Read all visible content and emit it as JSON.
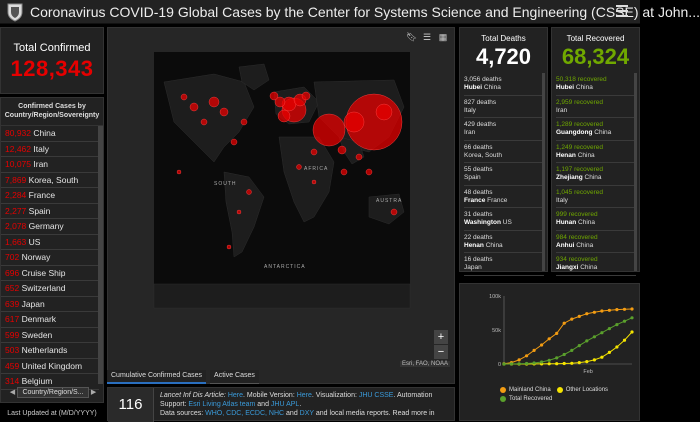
{
  "header": {
    "title": "Coronavirus COVID-19 Global Cases by the Center for Systems Science and Engineering (CSSE) at John..."
  },
  "total_confirmed": {
    "label": "Total Confirmed",
    "value": "128,343"
  },
  "country_panel": {
    "heading": "Confirmed Cases by Country/Region/Sovereignty",
    "rows": [
      {
        "num": "80,932",
        "name": "China"
      },
      {
        "num": "12,462",
        "name": "Italy"
      },
      {
        "num": "10,075",
        "name": "Iran"
      },
      {
        "num": "7,869",
        "name": "Korea, South"
      },
      {
        "num": "2,284",
        "name": "France"
      },
      {
        "num": "2,277",
        "name": "Spain"
      },
      {
        "num": "2,078",
        "name": "Germany"
      },
      {
        "num": "1,663",
        "name": "US"
      },
      {
        "num": "702",
        "name": "Norway"
      },
      {
        "num": "696",
        "name": "Cruise Ship"
      },
      {
        "num": "652",
        "name": "Switzerland"
      },
      {
        "num": "639",
        "name": "Japan"
      },
      {
        "num": "617",
        "name": "Denmark"
      },
      {
        "num": "599",
        "name": "Sweden"
      },
      {
        "num": "503",
        "name": "Netherlands"
      },
      {
        "num": "459",
        "name": "United Kingdom"
      },
      {
        "num": "314",
        "name": "Belgium"
      }
    ],
    "footer_tab": "Country/Region/S...",
    "prev_arrow": "◀",
    "next_arrow": "▶"
  },
  "last_updated": "Last Updated at (M/D/YYYY)",
  "map": {
    "labels": {
      "africa": "AFRICA",
      "south": "SOUTH",
      "austra": "AUSTRA",
      "antarctica": "ANTARCTICA"
    },
    "attribution": "Esri, FAO, NOAA",
    "zoom_in": "+",
    "zoom_out": "−",
    "tabs": [
      "Cumulative Confirmed Cases",
      "Active Cases"
    ]
  },
  "bottom_info": {
    "count": "116",
    "line1_prefix": "Lancet Inf Dis Article: ",
    "line1_link1": "Here",
    "line1_mid": ". Mobile Version: ",
    "line1_link2": "Here",
    "line1_mid2": ". Visualization: ",
    "line1_link3": "JHU CSSE",
    "line1_suffix": ". Automation",
    "line2_prefix": "Support: ",
    "line2_link1": "Esri Living Atlas team",
    "line2_mid": " and ",
    "line2_link2": "JHU APL",
    "line2_suffix": ".",
    "line3_prefix": "Data sources: ",
    "line3_links": "WHO, CDC, ECDC, NHC",
    "line3_mid": " and ",
    "line3_link2": "DXY",
    "line3_suffix": " and local media reports. Read more in"
  },
  "deaths": {
    "label": "Total Deaths",
    "value": "4,720",
    "rows": [
      {
        "num": "3,056 deaths",
        "place_bold": "Hubei",
        "place": "China"
      },
      {
        "num": "827 deaths",
        "place_bold": "",
        "place": "Italy"
      },
      {
        "num": "429 deaths",
        "place_bold": "",
        "place": "Iran"
      },
      {
        "num": "66 deaths",
        "place_bold": "",
        "place": "Korea, South"
      },
      {
        "num": "55 deaths",
        "place_bold": "",
        "place": "Spain"
      },
      {
        "num": "48 deaths",
        "place_bold": "France",
        "place": "France"
      },
      {
        "num": "31 deaths",
        "place_bold": "Washington",
        "place": "US"
      },
      {
        "num": "22 deaths",
        "place_bold": "Henan",
        "place": "China"
      },
      {
        "num": "16 deaths",
        "place_bold": "",
        "place": "Japan"
      }
    ]
  },
  "recovered": {
    "label": "Total Recovered",
    "value": "68,324",
    "rows": [
      {
        "num": "50,318 recovered",
        "place_bold": "Hubei",
        "place": "China"
      },
      {
        "num": "2,959 recovered",
        "place_bold": "",
        "place": "Iran"
      },
      {
        "num": "1,289 recovered",
        "place_bold": "Guangdong",
        "place": "China"
      },
      {
        "num": "1,249 recovered",
        "place_bold": "Henan",
        "place": "China"
      },
      {
        "num": "1,197 recovered",
        "place_bold": "Zhejiang",
        "place": "China"
      },
      {
        "num": "1,045 recovered",
        "place_bold": "",
        "place": "Italy"
      },
      {
        "num": "999 recovered",
        "place_bold": "Hunan",
        "place": "China"
      },
      {
        "num": "984 recovered",
        "place_bold": "Anhui",
        "place": "China"
      },
      {
        "num": "934 recovered",
        "place_bold": "Jiangxi",
        "place": "China"
      }
    ]
  },
  "chart_data": {
    "type": "line",
    "x_tick_labels": [
      "Feb"
    ],
    "y_tick_labels": [
      "100k",
      "50k",
      "0"
    ],
    "ylim": [
      0,
      100000
    ],
    "series": [
      {
        "name": "Mainland China",
        "color": "#f39c12",
        "values": [
          500,
          2000,
          6000,
          12000,
          20000,
          28000,
          37000,
          45000,
          60000,
          66000,
          70000,
          74000,
          76000,
          78000,
          79000,
          80000,
          80500,
          80900
        ]
      },
      {
        "name": "Other Locations",
        "color": "#f5e400",
        "values": [
          0,
          0,
          0,
          0,
          100,
          200,
          300,
          500,
          700,
          1000,
          2000,
          3500,
          6000,
          10000,
          17000,
          25000,
          35000,
          47000
        ]
      },
      {
        "name": "Total Recovered",
        "color": "#5aa02c",
        "values": [
          0,
          100,
          300,
          700,
          1500,
          3000,
          5500,
          9000,
          14000,
          20000,
          27000,
          34000,
          40000,
          46000,
          52000,
          58000,
          63000,
          68000
        ]
      }
    ],
    "legend_position": "bottom"
  },
  "colors": {
    "confirmed": "#e60000",
    "recovered": "#70a800",
    "link": "#3a9ad9",
    "panel": "#222222"
  }
}
